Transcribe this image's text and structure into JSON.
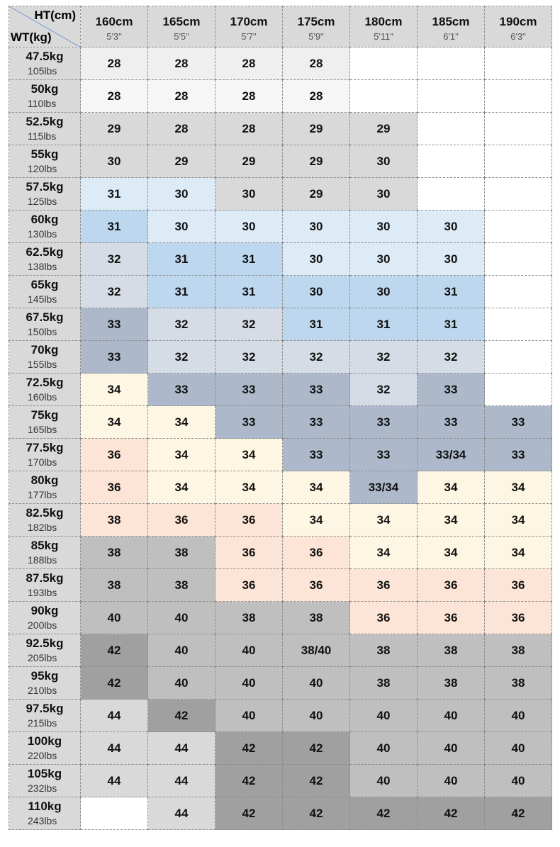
{
  "header": {
    "height_label": "HT(cm)",
    "weight_label": "WT(kg)",
    "header_color": "#d9d9d9",
    "columns": [
      {
        "cm": "160cm",
        "ft": "5'3\""
      },
      {
        "cm": "165cm",
        "ft": "5'5\""
      },
      {
        "cm": "170cm",
        "ft": "5'7\""
      },
      {
        "cm": "175cm",
        "ft": "5'9\""
      },
      {
        "cm": "180cm",
        "ft": "5'11\""
      },
      {
        "cm": "185cm",
        "ft": "6'1\""
      },
      {
        "cm": "190cm",
        "ft": "6'3\""
      }
    ]
  },
  "table": {
    "rows": [
      {
        "kg": "47.5kg",
        "lbs": "105lbs",
        "sizes": [
          "28",
          "28",
          "28",
          "28",
          null,
          null,
          null
        ],
        "colors": [
          "#efefef",
          "#efefef",
          "#efefef",
          "#efefef",
          "#ffffff",
          "#ffffff",
          "#ffffff"
        ]
      },
      {
        "kg": "50kg",
        "lbs": "110lbs",
        "sizes": [
          "28",
          "28",
          "28",
          "28",
          null,
          null,
          null
        ],
        "colors": [
          "#f6f6f6",
          "#f6f6f6",
          "#f6f6f6",
          "#f6f6f6",
          "#ffffff",
          "#ffffff",
          "#ffffff"
        ]
      },
      {
        "kg": "52.5kg",
        "lbs": "115lbs",
        "sizes": [
          "29",
          "28",
          "28",
          "29",
          "29",
          null,
          null
        ],
        "colors": [
          "#d9d9d9",
          "#d9d9d9",
          "#d9d9d9",
          "#d9d9d9",
          "#d9d9d9",
          "#ffffff",
          "#ffffff"
        ]
      },
      {
        "kg": "55kg",
        "lbs": "120lbs",
        "sizes": [
          "30",
          "29",
          "29",
          "29",
          "30",
          null,
          null
        ],
        "colors": [
          "#d9d9d9",
          "#d9d9d9",
          "#d9d9d9",
          "#d9d9d9",
          "#d9d9d9",
          "#ffffff",
          "#ffffff"
        ]
      },
      {
        "kg": "57.5kg",
        "lbs": "125lbs",
        "sizes": [
          "31",
          "30",
          "30",
          "29",
          "30",
          null,
          null
        ],
        "colors": [
          "#ddebf7",
          "#ddebf7",
          "#d9d9d9",
          "#d9d9d9",
          "#d9d9d9",
          "#ffffff",
          "#ffffff"
        ]
      },
      {
        "kg": "60kg",
        "lbs": "130lbs",
        "sizes": [
          "31",
          "30",
          "30",
          "30",
          "30",
          "30",
          null
        ],
        "colors": [
          "#bdd7ee",
          "#ddebf7",
          "#ddebf7",
          "#ddebf7",
          "#ddebf7",
          "#ddebf7",
          "#ffffff"
        ]
      },
      {
        "kg": "62.5kg",
        "lbs": "138lbs",
        "sizes": [
          "32",
          "31",
          "31",
          "30",
          "30",
          "30",
          null
        ],
        "colors": [
          "#d6dce5",
          "#bdd7ee",
          "#bdd7ee",
          "#ddebf7",
          "#ddebf7",
          "#ddebf7",
          "#ffffff"
        ]
      },
      {
        "kg": "65kg",
        "lbs": "145lbs",
        "sizes": [
          "32",
          "31",
          "31",
          "30",
          "30",
          "31",
          null
        ],
        "colors": [
          "#d6dce5",
          "#bdd7ee",
          "#bdd7ee",
          "#bdd7ee",
          "#bdd7ee",
          "#bdd7ee",
          "#ffffff"
        ]
      },
      {
        "kg": "67.5kg",
        "lbs": "150lbs",
        "sizes": [
          "33",
          "32",
          "32",
          "31",
          "31",
          "31",
          null
        ],
        "colors": [
          "#adb9ca",
          "#d6dce5",
          "#d6dce5",
          "#bdd7ee",
          "#bdd7ee",
          "#bdd7ee",
          "#ffffff"
        ]
      },
      {
        "kg": "70kg",
        "lbs": "155lbs",
        "sizes": [
          "33",
          "32",
          "32",
          "32",
          "32",
          "32",
          null
        ],
        "colors": [
          "#adb9ca",
          "#d6dce5",
          "#d6dce5",
          "#d6dce5",
          "#d6dce5",
          "#d6dce5",
          "#ffffff"
        ]
      },
      {
        "kg": "72.5kg",
        "lbs": "160lbs",
        "sizes": [
          "34",
          "33",
          "33",
          "33",
          "32",
          "33",
          null
        ],
        "colors": [
          "#fdf6e3",
          "#adb9ca",
          "#adb9ca",
          "#adb9ca",
          "#d6dce5",
          "#adb9ca",
          "#ffffff"
        ]
      },
      {
        "kg": "75kg",
        "lbs": "165lbs",
        "sizes": [
          "34",
          "34",
          "33",
          "33",
          "33",
          "33",
          "33"
        ],
        "colors": [
          "#fdf6e3",
          "#fdf6e3",
          "#adb9ca",
          "#adb9ca",
          "#adb9ca",
          "#adb9ca",
          "#adb9ca"
        ]
      },
      {
        "kg": "77.5kg",
        "lbs": "170lbs",
        "sizes": [
          "36",
          "34",
          "34",
          "33",
          "33",
          "33/34",
          "33"
        ],
        "colors": [
          "#fce4d6",
          "#fdf6e3",
          "#fdf6e3",
          "#adb9ca",
          "#adb9ca",
          "#adb9ca",
          "#adb9ca"
        ]
      },
      {
        "kg": "80kg",
        "lbs": "177lbs",
        "sizes": [
          "36",
          "34",
          "34",
          "34",
          "33/34",
          "34",
          "34"
        ],
        "colors": [
          "#fce4d6",
          "#fdf6e3",
          "#fdf6e3",
          "#fdf6e3",
          "#adb9ca",
          "#fdf6e3",
          "#fdf6e3"
        ]
      },
      {
        "kg": "82.5kg",
        "lbs": "182lbs",
        "sizes": [
          "38",
          "36",
          "36",
          "34",
          "34",
          "34",
          "34"
        ],
        "colors": [
          "#fce4d6",
          "#fce4d6",
          "#fce4d6",
          "#fdf6e3",
          "#fdf6e3",
          "#fdf6e3",
          "#fdf6e3"
        ]
      },
      {
        "kg": "85kg",
        "lbs": "188lbs",
        "sizes": [
          "38",
          "38",
          "36",
          "36",
          "34",
          "34",
          "34"
        ],
        "colors": [
          "#bfbfbf",
          "#bfbfbf",
          "#fce4d6",
          "#fce4d6",
          "#fdf6e3",
          "#fdf6e3",
          "#fdf6e3"
        ]
      },
      {
        "kg": "87.5kg",
        "lbs": "193lbs",
        "sizes": [
          "38",
          "38",
          "36",
          "36",
          "36",
          "36",
          "36"
        ],
        "colors": [
          "#bfbfbf",
          "#bfbfbf",
          "#fce4d6",
          "#fce4d6",
          "#fce4d6",
          "#fce4d6",
          "#fce4d6"
        ]
      },
      {
        "kg": "90kg",
        "lbs": "200lbs",
        "sizes": [
          "40",
          "40",
          "38",
          "38",
          "36",
          "36",
          "36"
        ],
        "colors": [
          "#bfbfbf",
          "#bfbfbf",
          "#bfbfbf",
          "#bfbfbf",
          "#fce4d6",
          "#fce4d6",
          "#fce4d6"
        ]
      },
      {
        "kg": "92.5kg",
        "lbs": "205lbs",
        "sizes": [
          "42",
          "40",
          "40",
          "38/40",
          "38",
          "38",
          "38"
        ],
        "colors": [
          "#a0a0a0",
          "#bfbfbf",
          "#bfbfbf",
          "#bfbfbf",
          "#bfbfbf",
          "#bfbfbf",
          "#bfbfbf"
        ]
      },
      {
        "kg": "95kg",
        "lbs": "210lbs",
        "sizes": [
          "42",
          "40",
          "40",
          "40",
          "38",
          "38",
          "38"
        ],
        "colors": [
          "#a0a0a0",
          "#bfbfbf",
          "#bfbfbf",
          "#bfbfbf",
          "#bfbfbf",
          "#bfbfbf",
          "#bfbfbf"
        ]
      },
      {
        "kg": "97.5kg",
        "lbs": "215lbs",
        "sizes": [
          "44",
          "42",
          "40",
          "40",
          "40",
          "40",
          "40"
        ],
        "colors": [
          "#d9d9d9",
          "#a0a0a0",
          "#bfbfbf",
          "#bfbfbf",
          "#bfbfbf",
          "#bfbfbf",
          "#bfbfbf"
        ]
      },
      {
        "kg": "100kg",
        "lbs": "220lbs",
        "sizes": [
          "44",
          "44",
          "42",
          "42",
          "40",
          "40",
          "40"
        ],
        "colors": [
          "#d9d9d9",
          "#d9d9d9",
          "#a0a0a0",
          "#a0a0a0",
          "#bfbfbf",
          "#bfbfbf",
          "#bfbfbf"
        ]
      },
      {
        "kg": "105kg",
        "lbs": "232lbs",
        "sizes": [
          "44",
          "44",
          "42",
          "42",
          "40",
          "40",
          "40"
        ],
        "colors": [
          "#d9d9d9",
          "#d9d9d9",
          "#a0a0a0",
          "#a0a0a0",
          "#bfbfbf",
          "#bfbfbf",
          "#bfbfbf"
        ]
      },
      {
        "kg": "110kg",
        "lbs": "243lbs",
        "sizes": [
          null,
          "44",
          "42",
          "42",
          "42",
          "42",
          "42"
        ],
        "colors": [
          "#ffffff",
          "#d9d9d9",
          "#a0a0a0",
          "#a0a0a0",
          "#a0a0a0",
          "#a0a0a0",
          "#a0a0a0"
        ]
      }
    ]
  }
}
